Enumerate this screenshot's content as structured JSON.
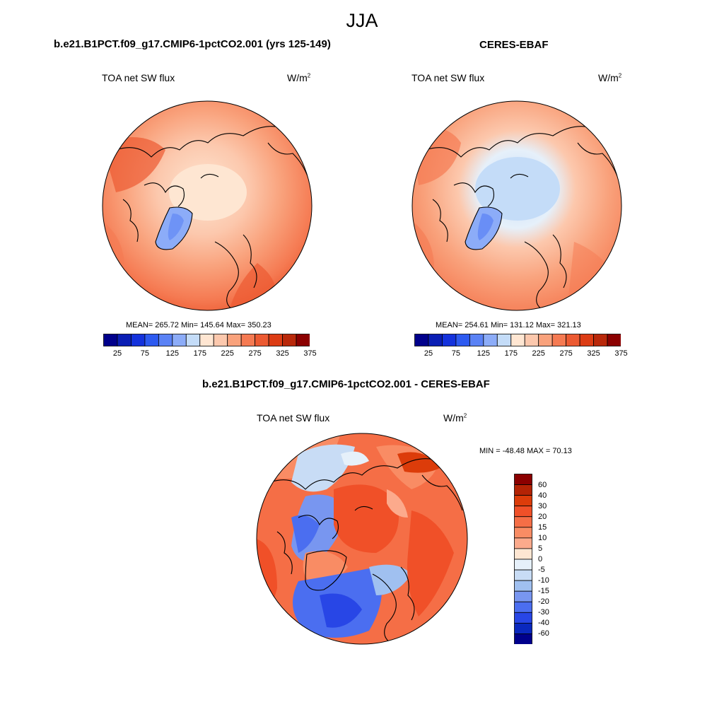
{
  "figure": {
    "title": "JJA"
  },
  "panels": [
    {
      "title": "b.e21.B1PCT.f09_g17.CMIP6-1pctCO2.001 (yrs 125-149)",
      "field": "TOA net SW flux",
      "units": "W/m",
      "units_sup": "2",
      "stats_text": "MEAN= 265.72  Min= 145.64  Max= 350.23",
      "stats": {
        "mean": 265.72,
        "min": 145.64,
        "max": 350.23
      }
    },
    {
      "title": "CERES-EBAF",
      "field": "TOA net SW flux",
      "units": "W/m",
      "units_sup": "2",
      "stats_text": "MEAN= 254.61  Min= 131.12  Max= 321.13",
      "stats": {
        "mean": 254.61,
        "min": 131.12,
        "max": 321.13
      }
    },
    {
      "title": "b.e21.B1PCT.f09_g17.CMIP6-1pctCO2.001 - CERES-EBAF",
      "field": "TOA net SW flux",
      "units": "W/m",
      "units_sup": "2",
      "stats_text": "MIN = -48.48 MAX =  70.13",
      "stats": {
        "min": -48.48,
        "max": 70.13
      }
    }
  ],
  "colorbars": {
    "absolute": {
      "colors": [
        "#00008b",
        "#0a1eb4",
        "#1432dc",
        "#2d5af0",
        "#5a82f5",
        "#8cacf8",
        "#c4dcf8",
        "#ffe6d2",
        "#fcc8ad",
        "#f9a27c",
        "#f57a52",
        "#ec5a32",
        "#dc3c14",
        "#b9280a",
        "#8b0000"
      ],
      "tick_labels": [
        "25",
        "75",
        "125",
        "175",
        "225",
        "275",
        "325",
        "375"
      ]
    },
    "difference": {
      "colors": [
        "#8b0000",
        "#b42305",
        "#dc3c0a",
        "#f05028",
        "#f56e46",
        "#f98c64",
        "#fcaa8c",
        "#fee6d2",
        "#e6f0fa",
        "#c8dcf5",
        "#a0c0f0",
        "#7896f0",
        "#4b6ef0",
        "#2846e6",
        "#0a28be",
        "#00008c"
      ],
      "tick_labels": [
        "60",
        "40",
        "30",
        "20",
        "15",
        "10",
        "5",
        "0",
        "-5",
        "-10",
        "-15",
        "-20",
        "-30",
        "-40",
        "-60"
      ]
    }
  }
}
